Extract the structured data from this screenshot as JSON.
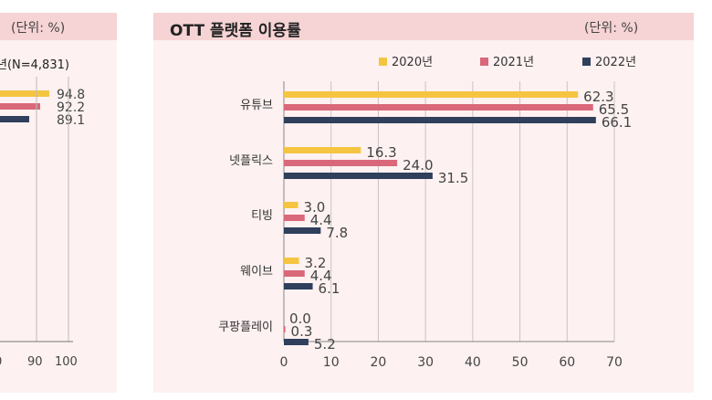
{
  "left_panel": {
    "unit": "(단위: %)",
    "subtitle": "년(N=4,831)",
    "values": [
      "94.8",
      "92.2",
      "89.1"
    ],
    "ticks": [
      "0",
      "90",
      "100"
    ]
  },
  "right_panel": {
    "title": "OTT 플랫폼 이용률",
    "unit": "(단위: %)"
  },
  "chart_data": {
    "type": "bar",
    "orientation": "horizontal",
    "title": "OTT 플랫폼 이용률",
    "unit": "(단위: %)",
    "categories": [
      "유튜브",
      "넷플릭스",
      "티빙",
      "웨이브",
      "쿠팡플레이"
    ],
    "series": [
      {
        "name": "2020년",
        "color": "#f5c542",
        "values": [
          62.3,
          16.3,
          3.0,
          3.2,
          0.0
        ],
        "labels": [
          "62.3",
          "16.3",
          "3.0",
          "3.2",
          "0.0"
        ]
      },
      {
        "name": "2021년",
        "color": "#d9687a",
        "values": [
          65.5,
          24.0,
          4.4,
          4.4,
          0.3
        ],
        "labels": [
          "65.5",
          "24.0",
          "4.4",
          "4.4",
          "0.3"
        ]
      },
      {
        "name": "2022년",
        "color": "#2f3f5c",
        "values": [
          66.1,
          31.5,
          7.8,
          6.1,
          5.2
        ],
        "labels": [
          "66.1",
          "31.5",
          "7.8",
          "6.1",
          "5.2"
        ]
      }
    ],
    "xlim": [
      0,
      70
    ],
    "xticks": [
      0,
      10,
      20,
      30,
      40,
      50,
      60,
      70
    ],
    "legend": "top-right",
    "grid": true
  }
}
